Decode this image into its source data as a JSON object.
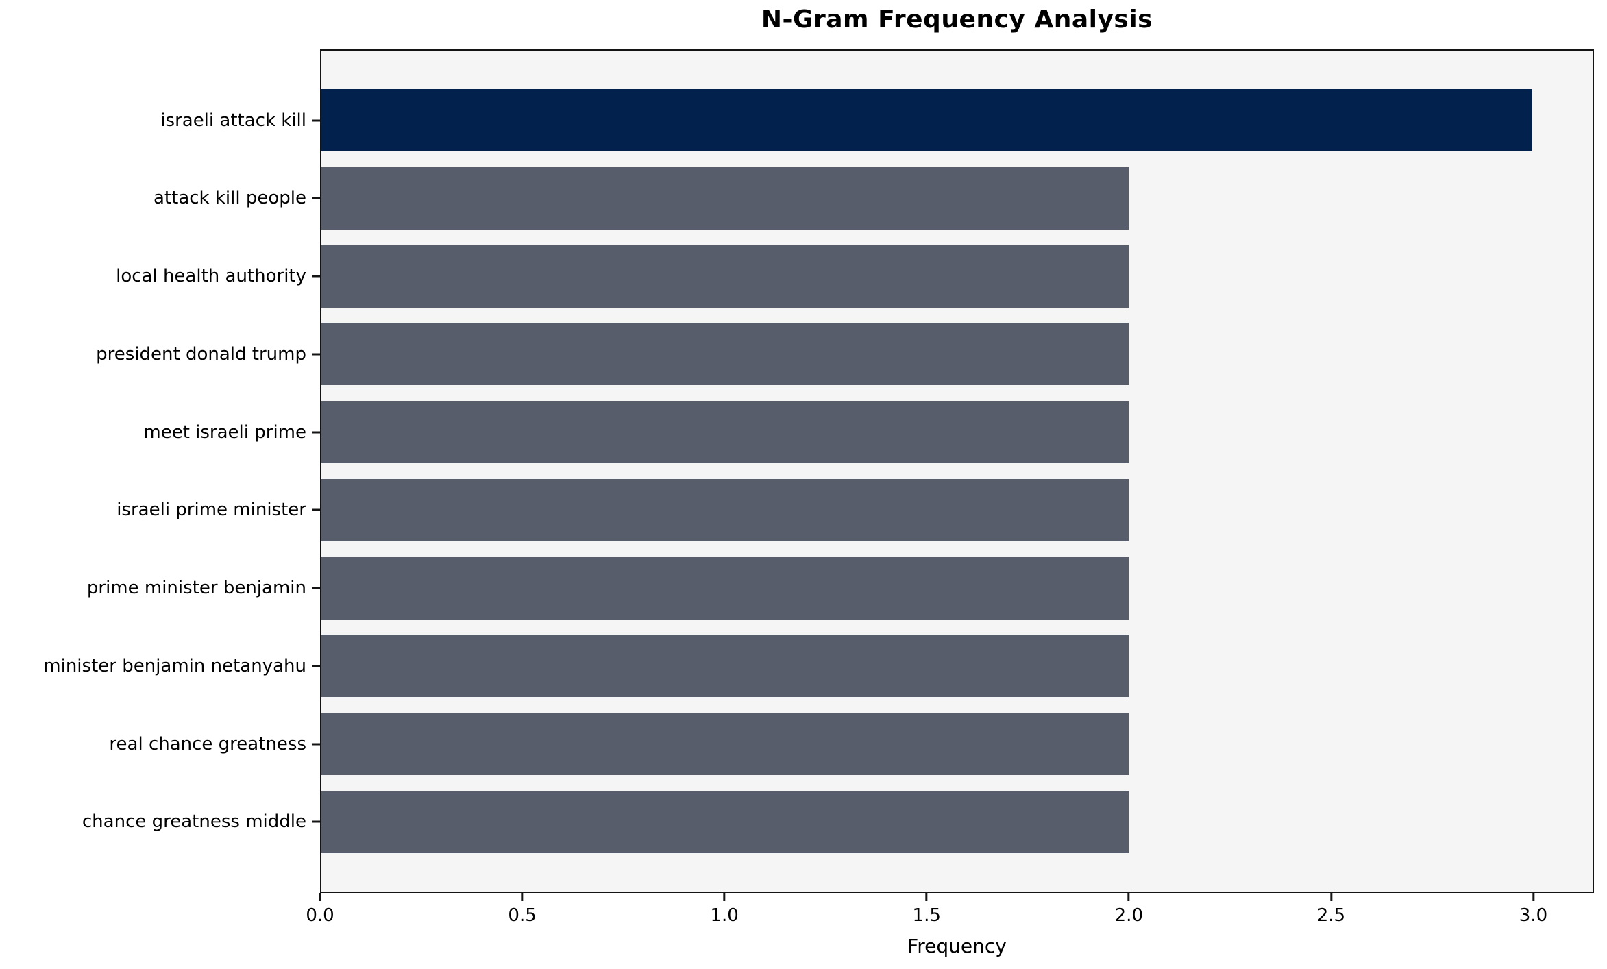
{
  "chart_data": {
    "type": "bar",
    "orientation": "horizontal",
    "title": "N-Gram Frequency Analysis",
    "xlabel": "Frequency",
    "ylabel": "",
    "categories": [
      "israeli attack kill",
      "attack kill people",
      "local health authority",
      "president donald trump",
      "meet israeli prime",
      "israeli prime minister",
      "prime minister benjamin",
      "minister benjamin netanyahu",
      "real chance greatness",
      "chance greatness middle"
    ],
    "values": [
      3,
      2,
      2,
      2,
      2,
      2,
      2,
      2,
      2,
      2
    ],
    "xlim": [
      0,
      3.15
    ],
    "xticks": [
      0,
      0.5,
      1,
      1.5,
      2,
      2.5,
      3
    ],
    "xtick_labels": [
      "0.0",
      "0.5",
      "1.0",
      "1.5",
      "2.0",
      "2.5",
      "3.0"
    ],
    "bar_height_frac": 0.8,
    "grid": false,
    "legend": null,
    "colors": {
      "highlight_bar": "#02224d",
      "bar": "#575d6a",
      "plot_background": "#f5f5f6",
      "figure_background": "#ffffff",
      "spine": "#141414",
      "text": "#000000"
    }
  }
}
